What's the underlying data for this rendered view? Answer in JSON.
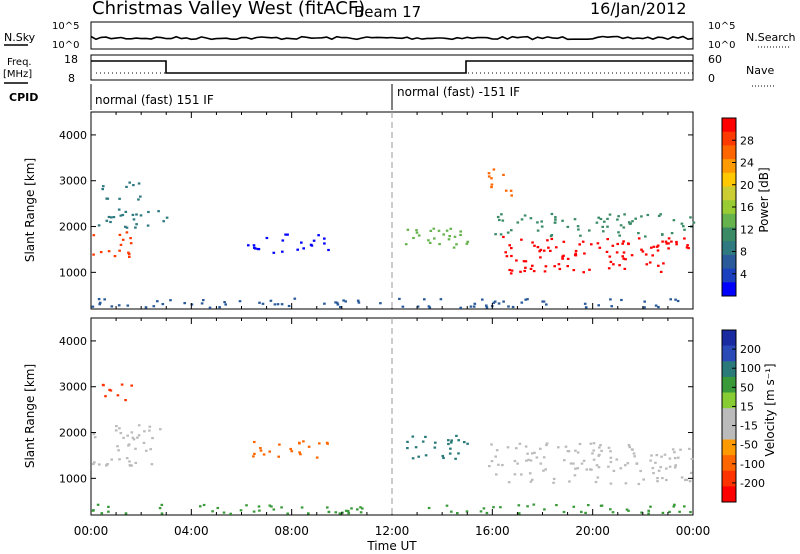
{
  "header": {
    "title": "Christmas Valley West (fitACF)",
    "beam": "Beam 17",
    "date": "16/Jan/2012"
  },
  "noise_panel": {
    "left_label": "N.Sky",
    "right_label": "N.Search",
    "left_ticks": [
      "10^5",
      "10^0"
    ],
    "right_ticks": [
      "10^5",
      "10^0"
    ]
  },
  "freq_panel": {
    "left_label_1": "Freq.",
    "left_label_2": "[MHz]",
    "right_label": "Nave",
    "left_ticks": [
      "18",
      "8"
    ],
    "right_ticks": [
      "60",
      "0"
    ]
  },
  "cpid_panel": {
    "label": "CPID",
    "segments": [
      "normal (fast) 151 IF",
      "normal (fast) -151 IF"
    ]
  },
  "chart_data": [
    {
      "type": "heatmap",
      "name": "power",
      "ylabel": "Slant Range [km]",
      "yticks": [
        1000,
        2000,
        3000,
        4000
      ],
      "ylim": [
        200,
        4500
      ],
      "xlim": [
        0,
        24
      ],
      "xlabel": "Time UT",
      "xticks": [
        "00:00",
        "04:00",
        "08:00",
        "12:00",
        "16:00",
        "20:00",
        "00:00"
      ],
      "colorbar": {
        "label": "Power [dB]",
        "ticks": [
          "28",
          "24",
          "20",
          "16",
          "12",
          "8",
          "4"
        ],
        "colors": [
          "#ff0000",
          "#ff3a00",
          "#ff6600",
          "#ff9a00",
          "#ffc800",
          "#cccc33",
          "#99cc33",
          "#66b24c",
          "#3a8a66",
          "#2e7a80",
          "#2a5a99",
          "#1a40c0",
          "#0000ff"
        ]
      },
      "features": [
        {
          "t": [
            0.0,
            1.6
          ],
          "r": [
            1350,
            1900
          ],
          "level": 26
        },
        {
          "t": [
            0.2,
            3.0
          ],
          "r": [
            1900,
            2400
          ],
          "level": 10
        },
        {
          "t": [
            0.4,
            2.0
          ],
          "r": [
            2600,
            3000
          ],
          "level": 10
        },
        {
          "t": [
            6.2,
            9.5
          ],
          "r": [
            1450,
            1850
          ],
          "level": 5
        },
        {
          "t": [
            12.3,
            15.0
          ],
          "r": [
            1450,
            2000
          ],
          "level": 14
        },
        {
          "t": [
            15.8,
            16.8
          ],
          "r": [
            2700,
            3300
          ],
          "level": 24
        },
        {
          "t": [
            16.3,
            24.0
          ],
          "r": [
            1000,
            1800
          ],
          "level": 28
        },
        {
          "t": [
            16.0,
            24.0
          ],
          "r": [
            1800,
            2300
          ],
          "level": 12
        },
        {
          "t": [
            0.0,
            24.0
          ],
          "r": [
            250,
            450
          ],
          "level": 8
        }
      ]
    },
    {
      "type": "heatmap",
      "name": "velocity",
      "ylabel": "Slant Range [km]",
      "yticks": [
        1000,
        2000,
        3000,
        4000
      ],
      "ylim": [
        200,
        4500
      ],
      "xlim": [
        0,
        24
      ],
      "xlabel": "Time UT",
      "xticks": [
        "00:00",
        "04:00",
        "08:00",
        "12:00",
        "16:00",
        "20:00",
        "00:00"
      ],
      "colorbar": {
        "label": "Velocity [m s⁻¹]",
        "ticks": [
          "200",
          "100",
          "50",
          "15",
          "-15",
          "-50",
          "-100",
          "-200"
        ],
        "colors": [
          "#1a2aa0",
          "#2a4ab8",
          "#2a7a7a",
          "#3a9a3a",
          "#88cc33",
          "#bbbbbb",
          "#bbbbbb",
          "#ff9900",
          "#ff6600",
          "#ff3300",
          "#ff0000"
        ]
      },
      "features": [
        {
          "t": [
            0.0,
            2.8
          ],
          "r": [
            1300,
            2200
          ],
          "v": 0
        },
        {
          "t": [
            0.4,
            1.8
          ],
          "r": [
            2700,
            3100
          ],
          "v": -150
        },
        {
          "t": [
            6.3,
            9.5
          ],
          "r": [
            1450,
            1850
          ],
          "v": -70
        },
        {
          "t": [
            12.3,
            15.0
          ],
          "r": [
            1450,
            2000
          ],
          "v": 60
        },
        {
          "t": [
            15.8,
            24.0
          ],
          "r": [
            900,
            1800
          ],
          "v": 0
        },
        {
          "t": [
            0.0,
            24.0
          ],
          "r": [
            250,
            450
          ],
          "v": 30
        }
      ]
    }
  ]
}
